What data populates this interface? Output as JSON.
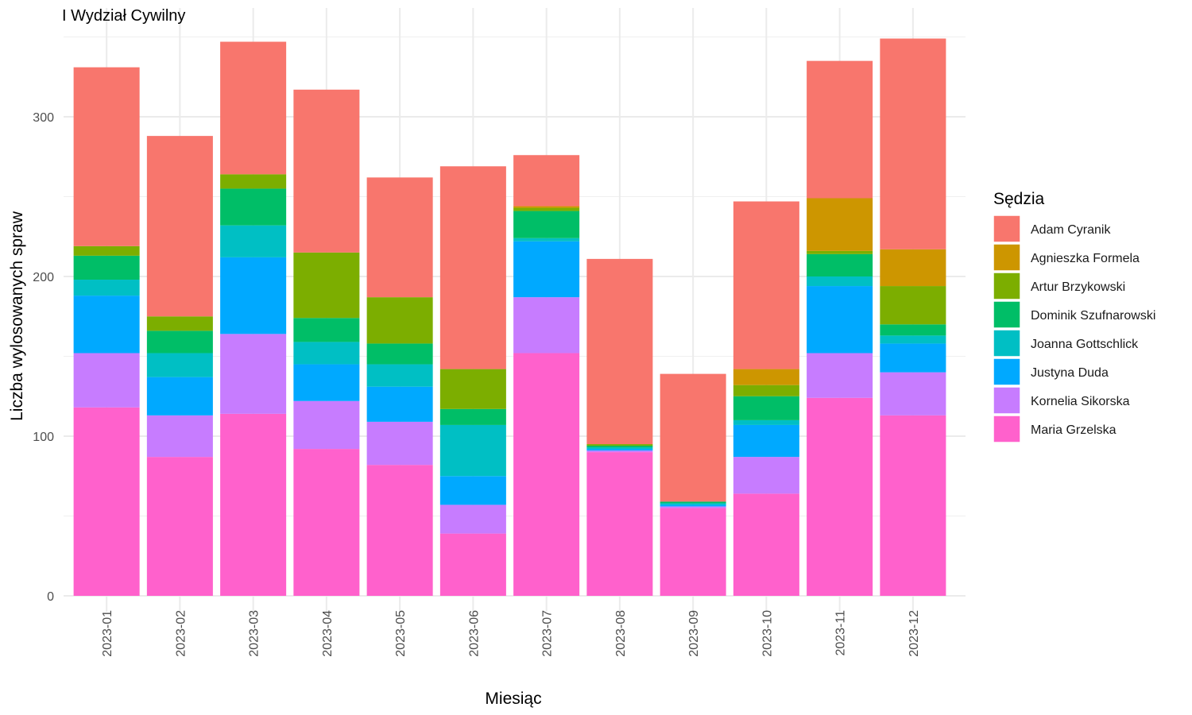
{
  "chart_data": {
    "type": "bar",
    "stacked": true,
    "title": "I Wydział Cywilny",
    "xlabel": "Miesiąc",
    "ylabel": "Liczba wylosowanych spraw",
    "ylim": [
      0,
      360
    ],
    "yticks": [
      0,
      100,
      200,
      300
    ],
    "grid": true,
    "legend": {
      "title": "Sędzia",
      "position": "right"
    },
    "categories": [
      "2023-01",
      "2023-02",
      "2023-03",
      "2023-04",
      "2023-05",
      "2023-06",
      "2023-07",
      "2023-08",
      "2023-09",
      "2023-10",
      "2023-11",
      "2023-12"
    ],
    "series": [
      {
        "name": "Adam Cyranik",
        "color": "#F8766D",
        "values": [
          112,
          113,
          83,
          102,
          75,
          127,
          32,
          116,
          80,
          105,
          86,
          132
        ]
      },
      {
        "name": "Agnieszka Formela",
        "color": "#CD9600",
        "values": [
          0,
          0,
          0,
          0,
          0,
          0,
          1,
          0,
          0,
          10,
          33,
          23
        ]
      },
      {
        "name": "Artur Brzykowski",
        "color": "#7CAE00",
        "values": [
          6,
          9,
          9,
          41,
          29,
          25,
          2,
          1,
          0,
          7,
          2,
          24
        ]
      },
      {
        "name": "Dominik Szufnarowski",
        "color": "#00BE67",
        "values": [
          15,
          14,
          23,
          15,
          13,
          10,
          17,
          1,
          1,
          15,
          14,
          7
        ]
      },
      {
        "name": "Joanna Gottschlick",
        "color": "#00BFC4",
        "values": [
          10,
          15,
          20,
          14,
          14,
          32,
          2,
          1,
          1,
          3,
          6,
          5
        ]
      },
      {
        "name": "Justyna Duda",
        "color": "#00A9FF",
        "values": [
          36,
          24,
          48,
          23,
          22,
          18,
          35,
          1,
          1,
          20,
          42,
          18
        ]
      },
      {
        "name": "Kornelia Sikorska",
        "color": "#C77CFF",
        "values": [
          34,
          26,
          50,
          30,
          27,
          18,
          35,
          1,
          1,
          23,
          28,
          27
        ]
      },
      {
        "name": "Maria Grzelska",
        "color": "#FF61CC",
        "values": [
          118,
          87,
          114,
          92,
          82,
          39,
          152,
          90,
          55,
          64,
          124,
          113
        ]
      }
    ]
  }
}
